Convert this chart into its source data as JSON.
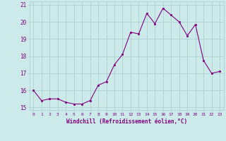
{
  "x": [
    0,
    1,
    2,
    3,
    4,
    5,
    6,
    7,
    8,
    9,
    10,
    11,
    12,
    13,
    14,
    15,
    16,
    17,
    18,
    19,
    20,
    21,
    22,
    23
  ],
  "y": [
    16.0,
    15.4,
    15.5,
    15.5,
    15.3,
    15.2,
    15.2,
    15.4,
    16.3,
    16.5,
    17.5,
    18.1,
    19.4,
    19.3,
    20.5,
    19.9,
    20.8,
    20.4,
    20.0,
    19.2,
    19.85,
    17.75,
    17.0,
    17.1
  ],
  "line_color": "#800080",
  "marker_color": "#800080",
  "bg_color": "#cceaea",
  "grid_color": "#aacccc",
  "xlabel": "Windchill (Refroidissement éolien,°C)",
  "xlabel_color": "#800080",
  "tick_color": "#800080",
  "ylim": [
    14.85,
    21.2
  ],
  "yticks": [
    15,
    16,
    17,
    18,
    19,
    20,
    21
  ],
  "xlim": [
    -0.5,
    23.5
  ],
  "xticks": [
    0,
    1,
    2,
    3,
    4,
    5,
    6,
    7,
    8,
    9,
    10,
    11,
    12,
    13,
    14,
    15,
    16,
    17,
    18,
    19,
    20,
    21,
    22,
    23
  ]
}
